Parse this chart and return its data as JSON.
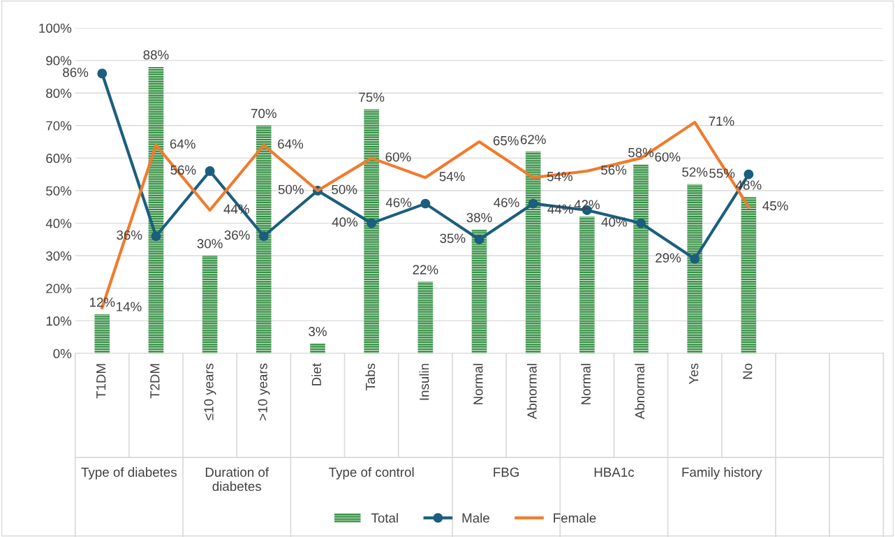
{
  "chart_data": {
    "type": "bar",
    "categories": [
      "T1DM",
      "T2DM",
      "≤10 years",
      ">10 years",
      "Diet",
      "Tabs",
      "Insulin",
      "Normal",
      "Abnormal",
      "Normal",
      "Abnormal",
      "Yes",
      "No",
      null,
      null
    ],
    "series": [
      {
        "name": "Total",
        "color": "#2e8b3e",
        "values": [
          12,
          88,
          30,
          70,
          3,
          75,
          22,
          38,
          62,
          42,
          58,
          52,
          48,
          null,
          null
        ],
        "value_labels": [
          "12%",
          "88%",
          "30%",
          "70%",
          "3%",
          "75%",
          "22%",
          "38%",
          "62%",
          "42%",
          "58%",
          "52%",
          "48%",
          null,
          null
        ]
      },
      {
        "name": "Male",
        "type": "line",
        "color": "#1b5e7e",
        "marker": "circle",
        "values": [
          86,
          36,
          56,
          36,
          50,
          40,
          46,
          35,
          46,
          44,
          40,
          29,
          55,
          null,
          null
        ],
        "value_labels": [
          "86%",
          "36%",
          "56%",
          "36%",
          "50%",
          "40%",
          "46%",
          "35%",
          "46%",
          "44%",
          "40%",
          "29%",
          "55%",
          null,
          null
        ]
      },
      {
        "name": "Female",
        "type": "line",
        "color": "#f07b2d",
        "values": [
          14,
          64,
          44,
          64,
          50,
          60,
          54,
          65,
          54,
          56,
          60,
          71,
          45,
          null,
          null
        ],
        "value_labels": [
          "14%",
          "64%",
          "44%",
          "64%",
          "50%",
          "60%",
          "54%",
          "65%",
          "54%",
          "56%",
          "60%",
          "71%",
          "45%",
          null,
          null
        ]
      }
    ],
    "annotations": [
      "Type of diabetes",
      "Duration of diabetes",
      "Type of control",
      "FBG",
      "HBA1c",
      "Family history"
    ],
    "ylim": [
      0,
      100
    ],
    "yticks": [
      {
        "value": 0,
        "label": "0%"
      },
      {
        "value": 10,
        "label": "10%"
      },
      {
        "value": 20,
        "label": "20%"
      },
      {
        "value": 30,
        "label": "30%"
      },
      {
        "value": 40,
        "label": "40%"
      },
      {
        "value": 50,
        "label": "50%"
      },
      {
        "value": 60,
        "label": "60%"
      },
      {
        "value": 70,
        "label": "70%"
      },
      {
        "value": 80,
        "label": "80%"
      },
      {
        "value": 90,
        "label": "90%"
      },
      {
        "value": 100,
        "label": "100%"
      }
    ],
    "grid": "y",
    "legend": "bottom"
  }
}
